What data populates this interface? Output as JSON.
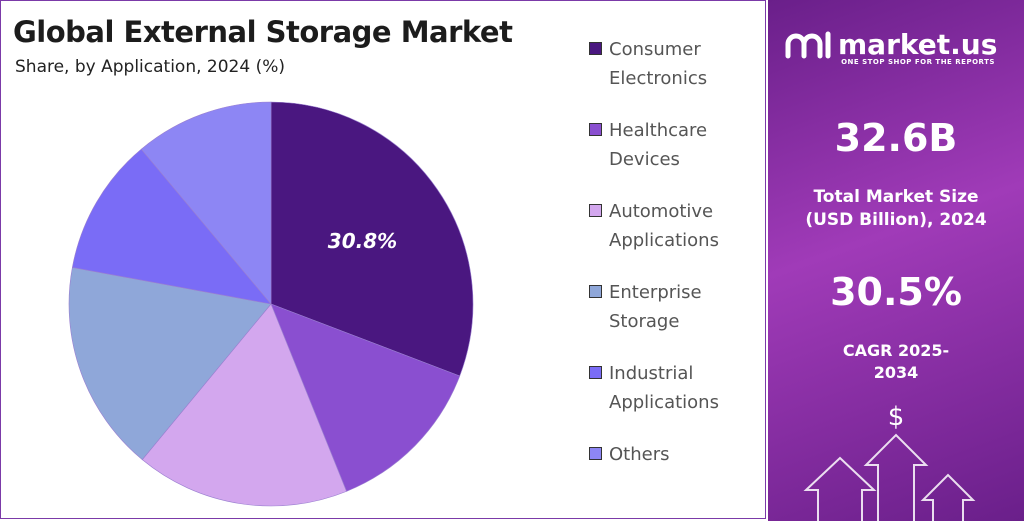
{
  "chart_data": {
    "type": "pie",
    "title": "Global External Storage Market",
    "subtitle": "Share, by Application, 2024 (%)",
    "categories": [
      "Consumer Electronics",
      "Healthcare Devices",
      "Automotive Applications",
      "Enterprise Storage",
      "Industrial Applications",
      "Others"
    ],
    "values": [
      30.8,
      13.1,
      17.1,
      16.9,
      11,
      11.1
    ],
    "value_labels": [
      "30.8%",
      null,
      null,
      null,
      null,
      null
    ],
    "colors": [
      "#4a1780",
      "#8a4fd0",
      "#d3a7ee",
      "#8fa7d9",
      "#7a6cf6",
      "#8d86f4"
    ],
    "legend": "right"
  },
  "panel": {
    "brand": "market.us",
    "tagline": "ONE STOP SHOP FOR THE REPORTS",
    "market_size": "32.6B",
    "market_size_label": "Total Market Size (USD Billion), 2024",
    "cagr": "30.5%",
    "cagr_label": "CAGR 2025-2034",
    "icon": "$"
  }
}
